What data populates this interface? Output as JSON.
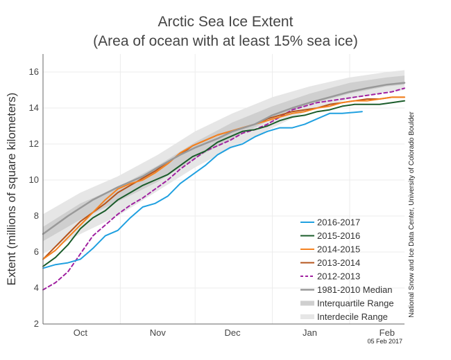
{
  "chart_data": {
    "type": "line",
    "title_line1": "Arctic Sea Ice Extent",
    "title_line2": "(Area of ocean with at least 15% sea ice)",
    "ylabel": "Extent (millions of square kilometers)",
    "xlabel": "",
    "credit": "National Snow and Ice Data Center, University of Colorado Boulder",
    "date_stamp": "05 Feb 2017",
    "x_unit": "days since Sep 15",
    "xlim": [
      0,
      145
    ],
    "ylim": [
      2,
      17
    ],
    "y_ticks": [
      2,
      4,
      6,
      8,
      10,
      12,
      14,
      16
    ],
    "month_ticks": [
      {
        "label": "Oct",
        "x": 15
      },
      {
        "label": "Nov",
        "x": 46
      },
      {
        "label": "Dec",
        "x": 76
      },
      {
        "label": "Jan",
        "x": 107
      },
      {
        "label": "Feb",
        "x": 138
      }
    ],
    "month_boundaries": [
      0,
      31,
      61,
      92,
      123
    ],
    "grid": true,
    "legend_position": "bottom-right",
    "bands": {
      "interdecile": {
        "name": "Interdecile Range",
        "color": "#e6e6e6",
        "x": [
          0,
          15,
          30,
          46,
          61,
          76,
          92,
          107,
          123,
          138,
          145
        ],
        "low": [
          5.9,
          7.0,
          8.0,
          9.4,
          10.7,
          11.8,
          12.9,
          13.9,
          14.5,
          14.9,
          15.0
        ],
        "high": [
          8.1,
          9.3,
          10.2,
          11.4,
          12.7,
          13.7,
          14.6,
          15.2,
          15.7,
          16.0,
          16.1
        ]
      },
      "interquartile": {
        "name": "Interquartile Range",
        "color": "#cfcfcf",
        "x": [
          0,
          15,
          30,
          46,
          61,
          76,
          92,
          107,
          123,
          138,
          145
        ],
        "low": [
          6.6,
          7.8,
          8.8,
          9.9,
          11.2,
          12.3,
          13.4,
          14.2,
          14.8,
          15.2,
          15.3
        ],
        "high": [
          7.4,
          8.7,
          9.6,
          10.8,
          12.1,
          13.2,
          14.1,
          14.8,
          15.4,
          15.7,
          15.8
        ]
      }
    },
    "series": [
      {
        "name": "1981-2010 Median",
        "color": "#999999",
        "dashed": false,
        "width": 2.5,
        "x": [
          0,
          10,
          20,
          30,
          40,
          46,
          55,
          61,
          70,
          76,
          85,
          92,
          100,
          107,
          115,
          123,
          130,
          138,
          145
        ],
        "values": [
          7.0,
          8.0,
          8.9,
          9.6,
          10.2,
          10.7,
          11.4,
          11.8,
          12.3,
          12.7,
          13.1,
          13.6,
          14.0,
          14.3,
          14.6,
          14.9,
          15.1,
          15.3,
          15.4
        ]
      },
      {
        "name": "2016-2017",
        "color": "#1fa0e0",
        "dashed": false,
        "width": 2,
        "x": [
          0,
          5,
          10,
          15,
          20,
          25,
          30,
          35,
          40,
          45,
          50,
          55,
          60,
          65,
          70,
          75,
          80,
          85,
          90,
          95,
          100,
          105,
          110,
          115,
          120,
          128
        ],
        "values": [
          5.1,
          5.3,
          5.4,
          5.6,
          6.2,
          6.9,
          7.2,
          7.9,
          8.5,
          8.7,
          9.1,
          9.8,
          10.3,
          10.8,
          11.4,
          11.8,
          12.0,
          12.4,
          12.7,
          12.9,
          12.9,
          13.1,
          13.4,
          13.7,
          13.7,
          13.8
        ]
      },
      {
        "name": "2015-2016",
        "color": "#1a5c2a",
        "dashed": false,
        "width": 2,
        "x": [
          0,
          5,
          10,
          15,
          20,
          25,
          30,
          35,
          40,
          45,
          50,
          55,
          60,
          65,
          70,
          75,
          80,
          85,
          90,
          95,
          100,
          105,
          110,
          115,
          120,
          125,
          130,
          135,
          140,
          145
        ],
        "values": [
          5.2,
          5.7,
          6.4,
          7.3,
          7.9,
          8.3,
          8.9,
          9.3,
          9.7,
          10.0,
          10.3,
          10.8,
          11.3,
          11.6,
          12.1,
          12.4,
          12.7,
          12.8,
          13.0,
          13.3,
          13.5,
          13.6,
          13.8,
          13.9,
          14.1,
          14.2,
          14.2,
          14.2,
          14.3,
          14.4
        ]
      },
      {
        "name": "2014-2015",
        "color": "#f5821f",
        "dashed": false,
        "width": 2,
        "x": [
          0,
          5,
          10,
          15,
          20,
          25,
          30,
          35,
          40,
          45,
          50,
          55,
          60,
          65,
          70,
          75,
          80,
          85,
          90,
          95,
          100,
          105,
          110,
          115,
          120,
          125,
          130,
          135,
          140,
          145
        ],
        "values": [
          5.6,
          6.1,
          6.8,
          7.5,
          8.2,
          8.9,
          9.5,
          9.8,
          10.0,
          10.4,
          10.9,
          11.5,
          11.9,
          12.2,
          12.5,
          12.7,
          12.9,
          13.1,
          13.3,
          13.5,
          13.7,
          13.8,
          14.0,
          14.1,
          14.3,
          14.4,
          14.4,
          14.5,
          14.6,
          14.6
        ]
      },
      {
        "name": "2013-2014",
        "color": "#b5541c",
        "dashed": false,
        "width": 2,
        "x": [
          0,
          5,
          10,
          15,
          20,
          25,
          30,
          35,
          40,
          45,
          50,
          55,
          60,
          65,
          70,
          75,
          80,
          85,
          90,
          95,
          100,
          105,
          110,
          115,
          120,
          125,
          130,
          135,
          140,
          145
        ],
        "values": [
          5.6,
          6.3,
          7.0,
          7.7,
          8.2,
          8.7,
          9.3,
          9.7,
          10.1,
          10.5,
          11.0,
          11.4,
          11.9,
          12.2,
          12.5,
          12.7,
          12.9,
          13.1,
          13.4,
          13.6,
          13.8,
          13.9,
          14.0,
          14.2,
          14.3,
          14.4,
          14.5,
          14.5,
          14.6,
          14.6
        ]
      },
      {
        "name": "2012-2013",
        "color": "#a020a0",
        "dashed": true,
        "width": 2,
        "x": [
          0,
          5,
          10,
          15,
          20,
          25,
          30,
          35,
          40,
          45,
          50,
          55,
          60,
          65,
          70,
          75,
          80,
          85,
          90,
          95,
          100,
          105,
          110,
          115,
          120,
          125,
          130,
          135,
          140,
          145
        ],
        "values": [
          3.9,
          4.3,
          4.9,
          5.9,
          6.9,
          7.5,
          8.1,
          8.6,
          9.0,
          9.5,
          10.0,
          10.6,
          11.1,
          11.6,
          11.9,
          12.2,
          12.6,
          12.8,
          13.1,
          13.5,
          13.9,
          14.1,
          14.3,
          14.4,
          14.5,
          14.6,
          14.7,
          14.8,
          14.9,
          15.1
        ]
      }
    ],
    "legend": [
      {
        "label": "2016-2017",
        "color": "#1fa0e0",
        "style": "line"
      },
      {
        "label": "2015-2016",
        "color": "#1a5c2a",
        "style": "line"
      },
      {
        "label": "2014-2015",
        "color": "#f5821f",
        "style": "line"
      },
      {
        "label": "2013-2014",
        "color": "#b5541c",
        "style": "line"
      },
      {
        "label": "2012-2013",
        "color": "#a020a0",
        "style": "dashed"
      },
      {
        "label": "1981-2010 Median",
        "color": "#999999",
        "style": "line"
      },
      {
        "label": "Interquartile Range",
        "color": "#cfcfcf",
        "style": "band"
      },
      {
        "label": "Interdecile Range",
        "color": "#e6e6e6",
        "style": "band"
      }
    ]
  }
}
